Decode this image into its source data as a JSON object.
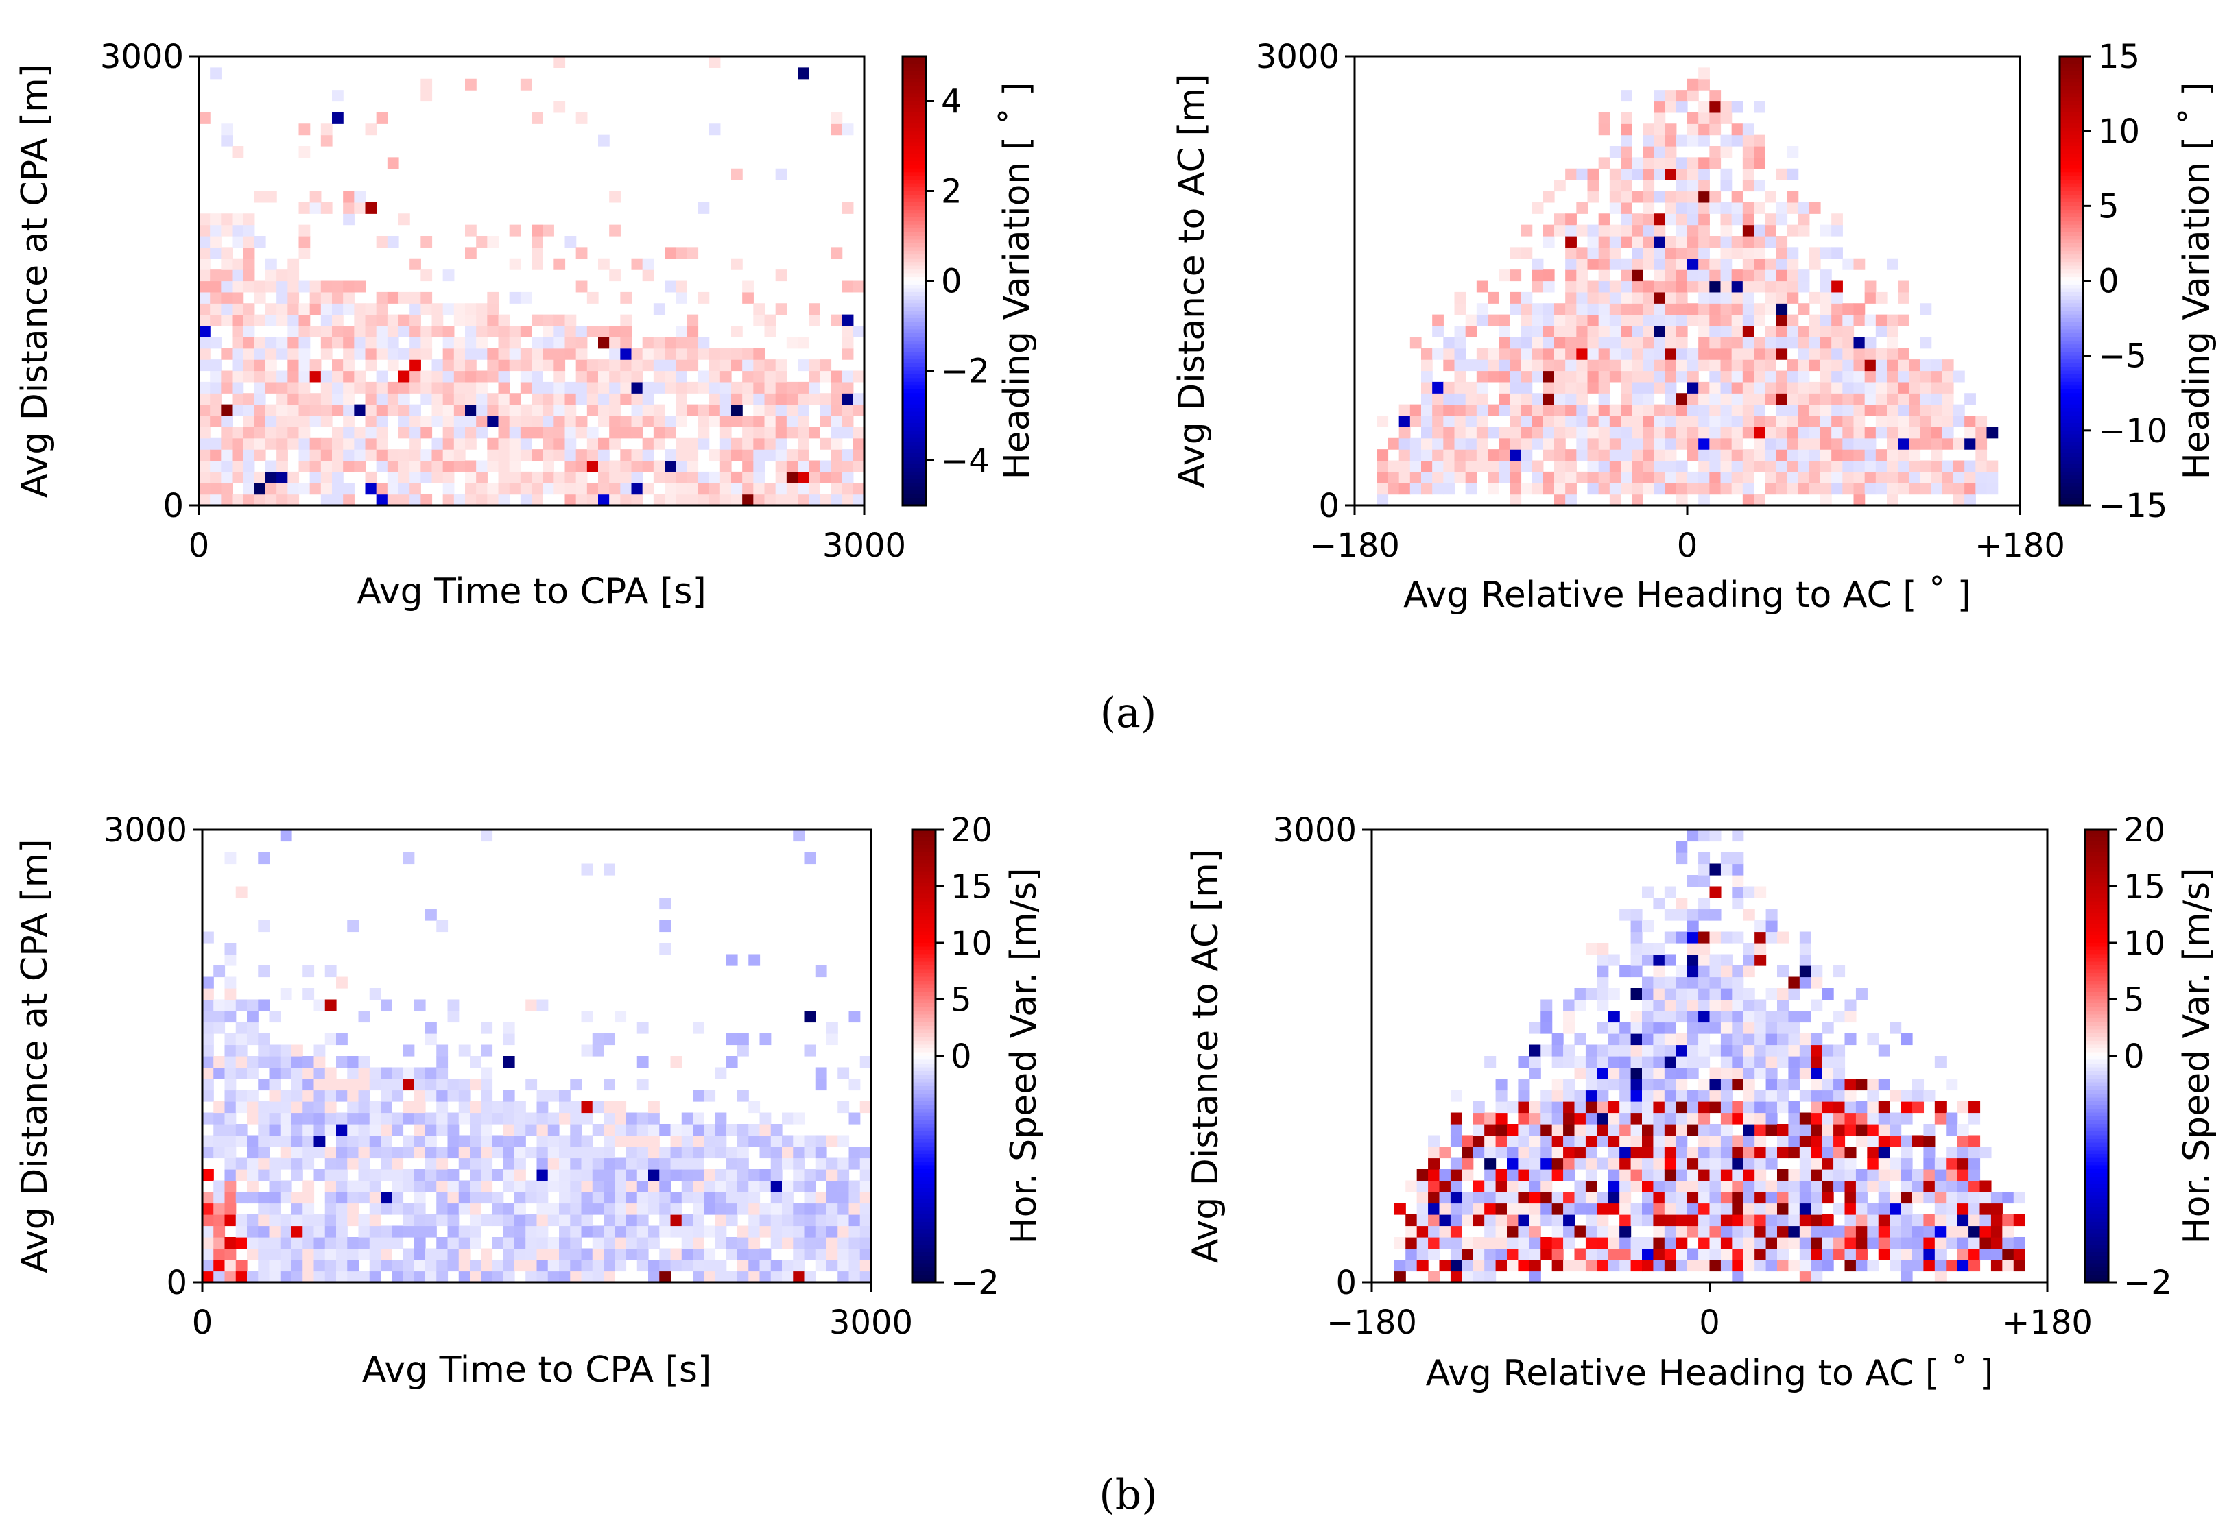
{
  "figure": {
    "panel_labels": [
      "(a)",
      "(b)"
    ]
  },
  "chart_data": [
    {
      "id": "a-left",
      "type": "heatmap",
      "title": "",
      "xlabel": "Avg Time to CPA [s]",
      "ylabel": "Avg Distance at CPA [m]",
      "xlim": [
        0,
        3000
      ],
      "ylim": [
        0,
        3000
      ],
      "xticks": [
        {
          "value": 0,
          "label": "0"
        },
        {
          "value": 3000,
          "label": "3000"
        }
      ],
      "yticks": [
        {
          "value": 0,
          "label": "0"
        },
        {
          "value": 3000,
          "label": "3000"
        }
      ],
      "colorbar": {
        "label": "Heading Variation [ ˚ ]",
        "cmap": "seismic",
        "vmin": -5,
        "vmax": 5,
        "ticks": [
          {
            "value": 4,
            "label": "4"
          },
          {
            "value": 2,
            "label": "2"
          },
          {
            "value": 0,
            "label": "0"
          },
          {
            "value": -2,
            "label": "−2"
          },
          {
            "value": -4,
            "label": "−4"
          }
        ]
      },
      "grid": {
        "nx": 60,
        "ny": 40,
        "seed": 11,
        "profile": "time",
        "bias": 0.25,
        "outliers": 0.03,
        "amp": 0.8
      }
    },
    {
      "id": "a-right",
      "type": "heatmap",
      "title": "",
      "xlabel": "Avg Relative Heading to AC [ ˚ ]",
      "ylabel": "Avg Distance to AC [m]",
      "xlim": [
        -180,
        180
      ],
      "ylim": [
        0,
        3000
      ],
      "xticks": [
        {
          "value": -180,
          "label": "−180"
        },
        {
          "value": 0,
          "label": "0"
        },
        {
          "value": 180,
          "label": "+180"
        }
      ],
      "yticks": [
        {
          "value": 0,
          "label": "0"
        },
        {
          "value": 3000,
          "label": "3000"
        }
      ],
      "colorbar": {
        "label": "Heading Variation [ ˚ ]",
        "cmap": "seismic",
        "vmin": -15,
        "vmax": 15,
        "ticks": [
          {
            "value": 15,
            "label": "15"
          },
          {
            "value": 10,
            "label": "10"
          },
          {
            "value": 5,
            "label": "5"
          },
          {
            "value": 0,
            "label": "0"
          },
          {
            "value": -5,
            "label": "−5"
          },
          {
            "value": -10,
            "label": "−10"
          },
          {
            "value": -15,
            "label": "−15"
          }
        ]
      },
      "grid": {
        "nx": 60,
        "ny": 40,
        "seed": 23,
        "profile": "dome",
        "bias": 0.2,
        "outliers": 0.03,
        "amp": 1.0
      }
    },
    {
      "id": "b-left",
      "type": "heatmap",
      "title": "",
      "xlabel": "Avg Time to CPA [s]",
      "ylabel": "Avg Distance at CPA [m]",
      "xlim": [
        0,
        3000
      ],
      "ylim": [
        0,
        3000
      ],
      "xticks": [
        {
          "value": 0,
          "label": "0"
        },
        {
          "value": 3000,
          "label": "3000"
        }
      ],
      "yticks": [
        {
          "value": 0,
          "label": "0"
        },
        {
          "value": 3000,
          "label": "3000"
        }
      ],
      "colorbar": {
        "label": "Hor. Speed Var. [m/s]",
        "cmap": "seismic-two-slope",
        "vmin": -2,
        "vcenter": 0,
        "vmax": 20,
        "ticks": [
          {
            "value": 20,
            "label": "20"
          },
          {
            "value": 15,
            "label": "15"
          },
          {
            "value": 10,
            "label": "10"
          },
          {
            "value": 5,
            "label": "5"
          },
          {
            "value": 0,
            "label": "0"
          },
          {
            "value": -2,
            "label": "−2"
          }
        ]
      },
      "grid": {
        "nx": 60,
        "ny": 40,
        "seed": 37,
        "profile": "time",
        "bias": -0.35,
        "outliers": 0.02,
        "amp": 0.7
      }
    },
    {
      "id": "b-right",
      "type": "heatmap",
      "title": "",
      "xlabel": "Avg Relative Heading to AC [ ˚ ]",
      "ylabel": "Avg Distance to AC [m]",
      "xlim": [
        -180,
        180
      ],
      "ylim": [
        0,
        3000
      ],
      "xticks": [
        {
          "value": -180,
          "label": "−180"
        },
        {
          "value": 0,
          "label": "0"
        },
        {
          "value": 180,
          "label": "+180"
        }
      ],
      "yticks": [
        {
          "value": 0,
          "label": "0"
        },
        {
          "value": 3000,
          "label": "3000"
        }
      ],
      "colorbar": {
        "label": "Hor. Speed Var. [m/s]",
        "cmap": "seismic-two-slope",
        "vmin": -2,
        "vcenter": 0,
        "vmax": 20,
        "ticks": [
          {
            "value": 20,
            "label": "20"
          },
          {
            "value": 15,
            "label": "15"
          },
          {
            "value": 10,
            "label": "10"
          },
          {
            "value": 5,
            "label": "5"
          },
          {
            "value": 0,
            "label": "0"
          },
          {
            "value": -2,
            "label": "−2"
          }
        ]
      },
      "grid": {
        "nx": 60,
        "ny": 40,
        "seed": 53,
        "profile": "dome-hot",
        "bias": -0.3,
        "outliers": 0.08,
        "amp": 0.9
      }
    }
  ]
}
